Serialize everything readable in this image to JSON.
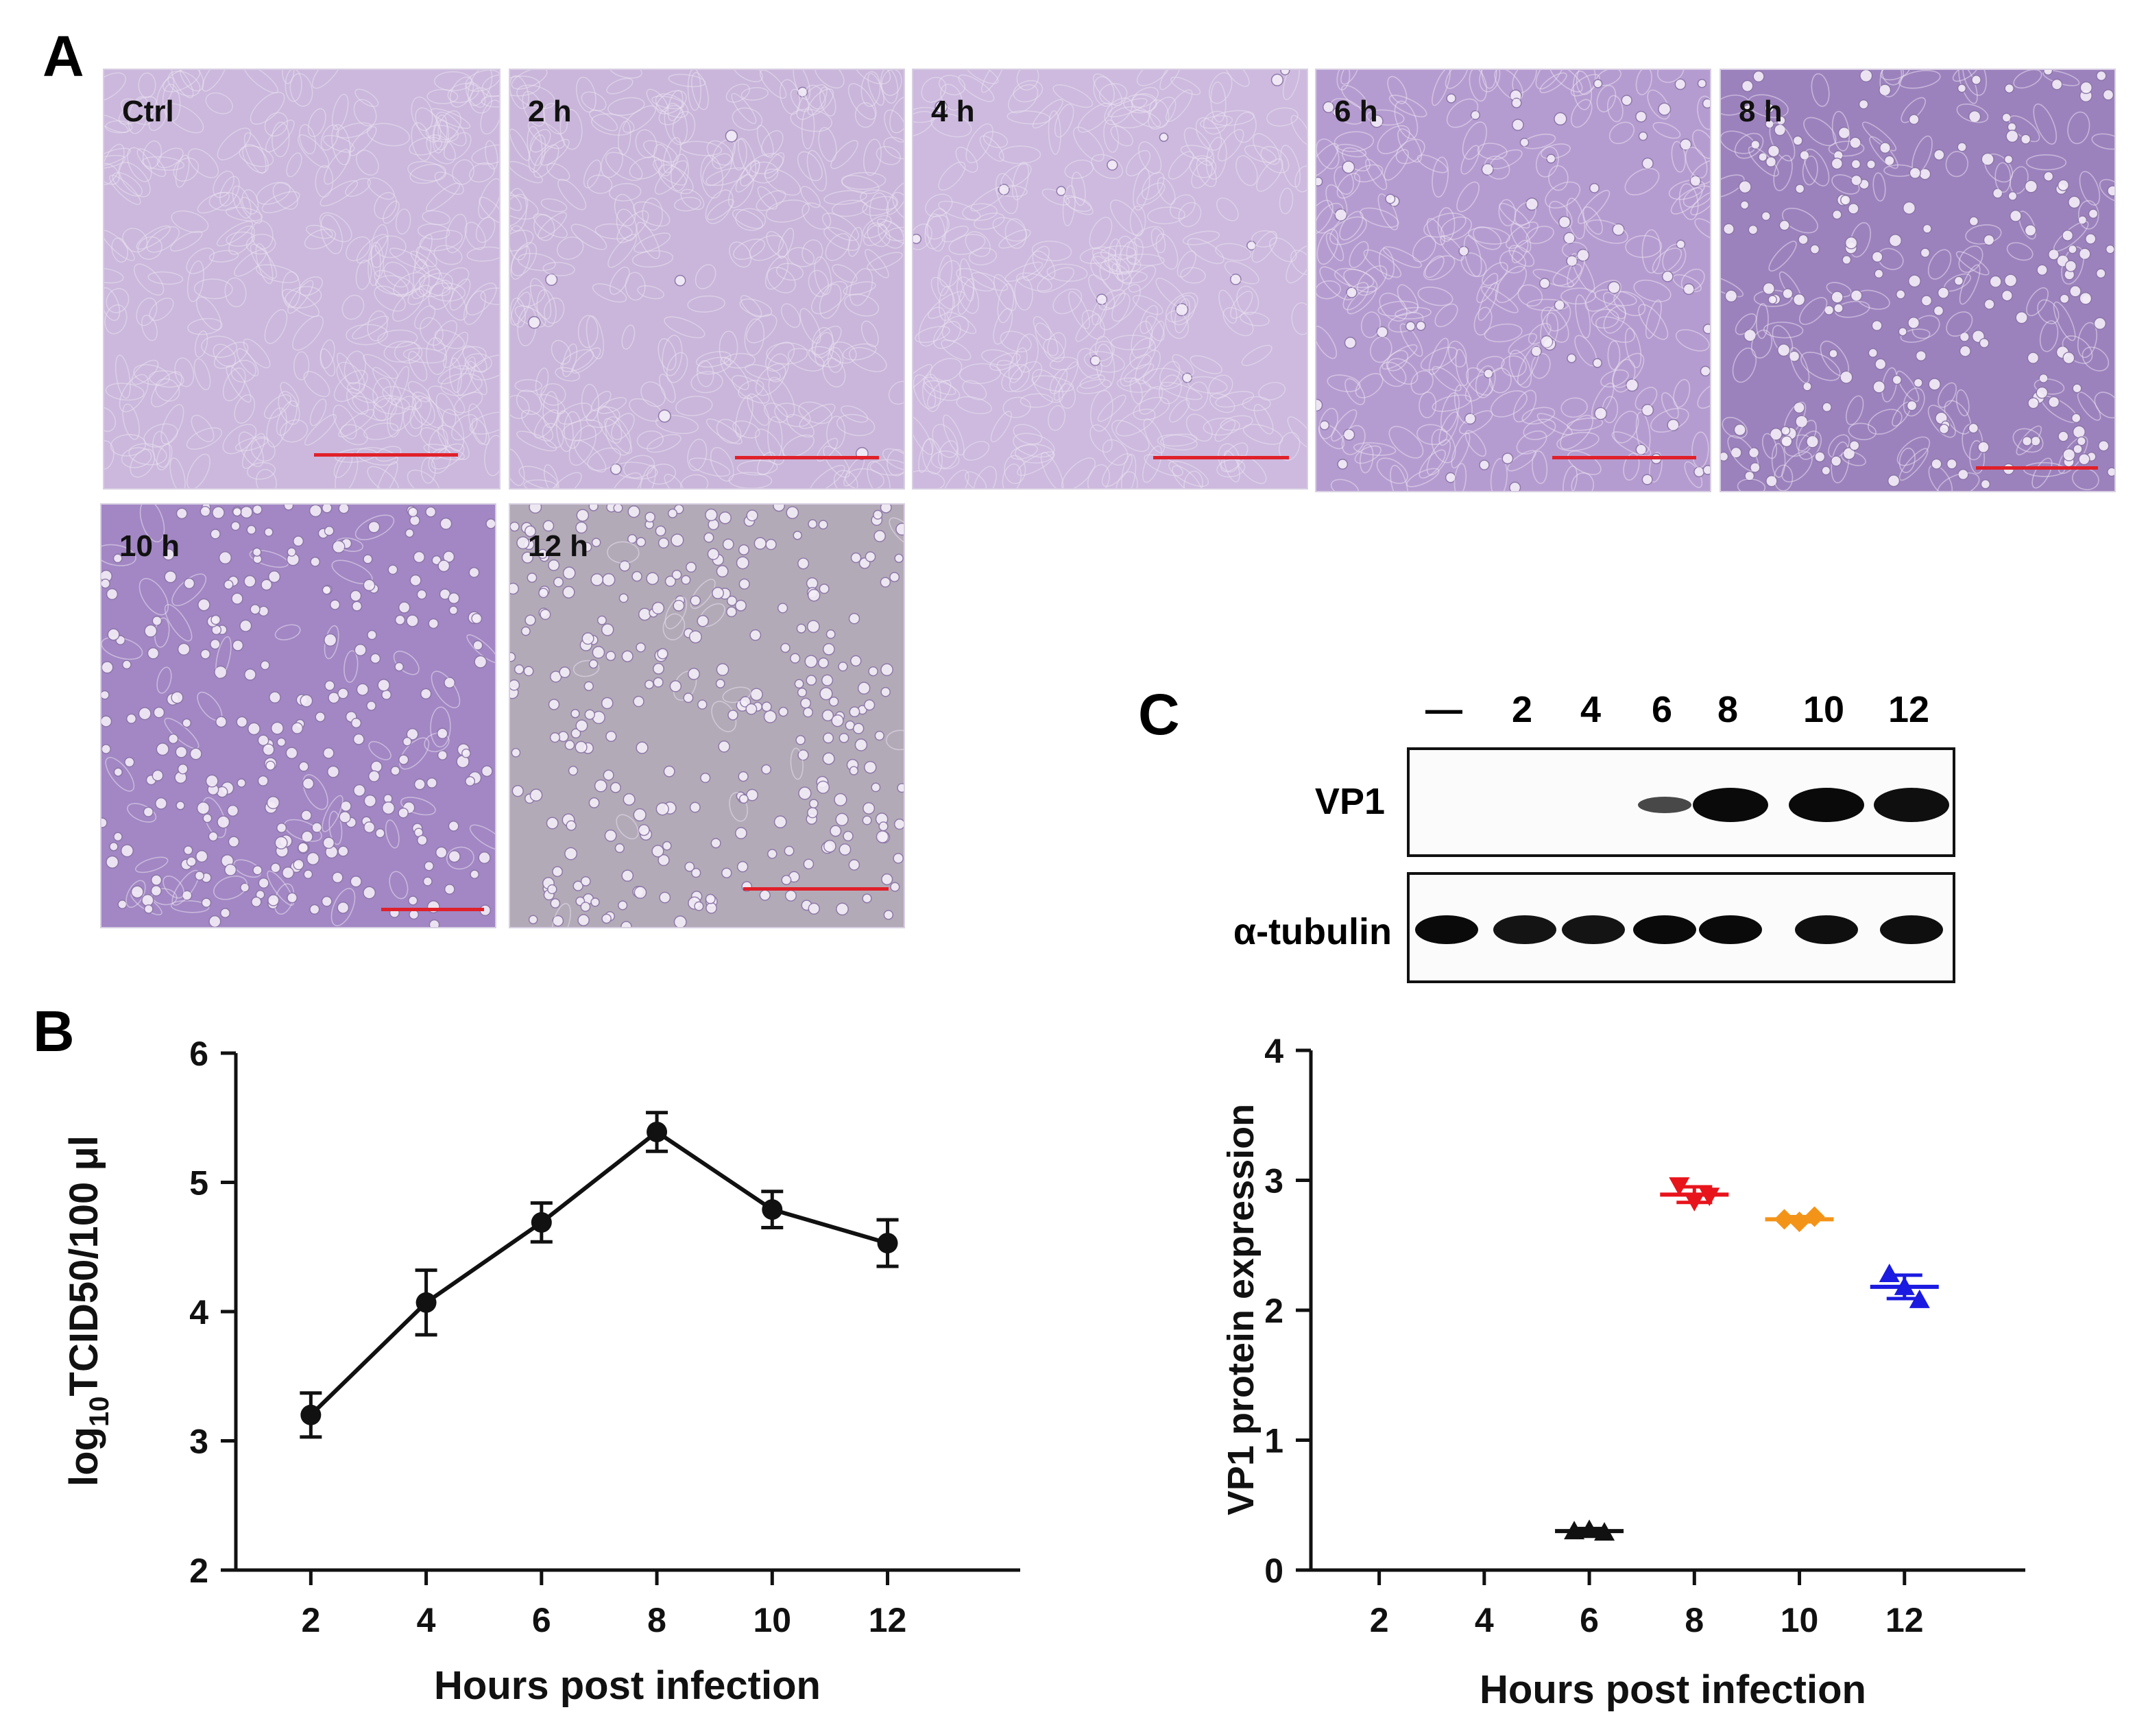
{
  "panels": {
    "a": "A",
    "b": "B",
    "c": "C"
  },
  "micrographs": [
    {
      "label": "Ctrl",
      "tint": "#cbb8dc",
      "rounded_fraction": 0.0
    },
    {
      "label": "2 h",
      "tint": "#c9b6da",
      "rounded_fraction": 0.02
    },
    {
      "label": "4 h",
      "tint": "#cdbade",
      "rounded_fraction": 0.04
    },
    {
      "label": "6 h",
      "tint": "#b59cd0",
      "rounded_fraction": 0.2
    },
    {
      "label": "8 h",
      "tint": "#9c82bd",
      "rounded_fraction": 0.6
    },
    {
      "label": "10 h",
      "tint": "#a287c4",
      "rounded_fraction": 0.85
    },
    {
      "label": "12 h",
      "tint": "#b3aab8",
      "rounded_fraction": 0.95
    }
  ],
  "blot": {
    "lanes": [
      "—",
      "2",
      "4",
      "6",
      "8",
      "10",
      "12"
    ],
    "rows": [
      {
        "label": "VP1",
        "intensity": [
          0,
          0,
          0,
          0.35,
          1.0,
          1.0,
          0.95
        ]
      },
      {
        "label": "α-tubulin",
        "intensity": [
          1,
          0.9,
          0.9,
          1,
          1,
          0.95,
          0.95
        ]
      }
    ]
  },
  "chart_data": [
    {
      "type": "line",
      "xlabel": "Hours post infection",
      "ylabel": "log10TCID50/100 μl",
      "ylabel_parts": {
        "pre": "log",
        "sub": "10",
        "post": "TCID50/100 μl"
      },
      "x": [
        2,
        4,
        6,
        8,
        10,
        12
      ],
      "y": [
        3.2,
        4.07,
        4.69,
        5.39,
        4.79,
        4.53
      ],
      "error": [
        0.17,
        0.25,
        0.15,
        0.15,
        0.14,
        0.18
      ],
      "xlim": [
        0.7,
        14.3
      ],
      "ylim": [
        2,
        6
      ],
      "xticks": [
        2,
        4,
        6,
        8,
        10,
        12
      ],
      "yticks": [
        2,
        3,
        4,
        5,
        6
      ],
      "grid": false
    },
    {
      "type": "scatter",
      "xlabel": "Hours post infection",
      "ylabel": "VP1 protein expression",
      "xticks": [
        2,
        4,
        6,
        8,
        10,
        12
      ],
      "yticks": [
        0,
        1,
        2,
        3,
        4
      ],
      "xlim": [
        0.7,
        14.3
      ],
      "ylim": [
        0,
        4
      ],
      "grid": false,
      "series": [
        {
          "x": 6,
          "points": [
            0.3,
            0.31,
            0.29
          ],
          "mean": 0.3,
          "error": 0.02,
          "color": "#111111",
          "marker": "triangle-up"
        },
        {
          "x": 8,
          "points": [
            2.96,
            2.84,
            2.88
          ],
          "mean": 2.89,
          "error": 0.06,
          "color": "#e8141c",
          "marker": "triangle-down"
        },
        {
          "x": 10,
          "points": [
            2.7,
            2.68,
            2.72
          ],
          "mean": 2.7,
          "error": 0.02,
          "color": "#f39419",
          "marker": "diamond"
        },
        {
          "x": 12,
          "points": [
            2.28,
            2.18,
            2.08
          ],
          "mean": 2.18,
          "error": 0.09,
          "color": "#1a1ae0",
          "marker": "triangle-up"
        }
      ]
    }
  ]
}
